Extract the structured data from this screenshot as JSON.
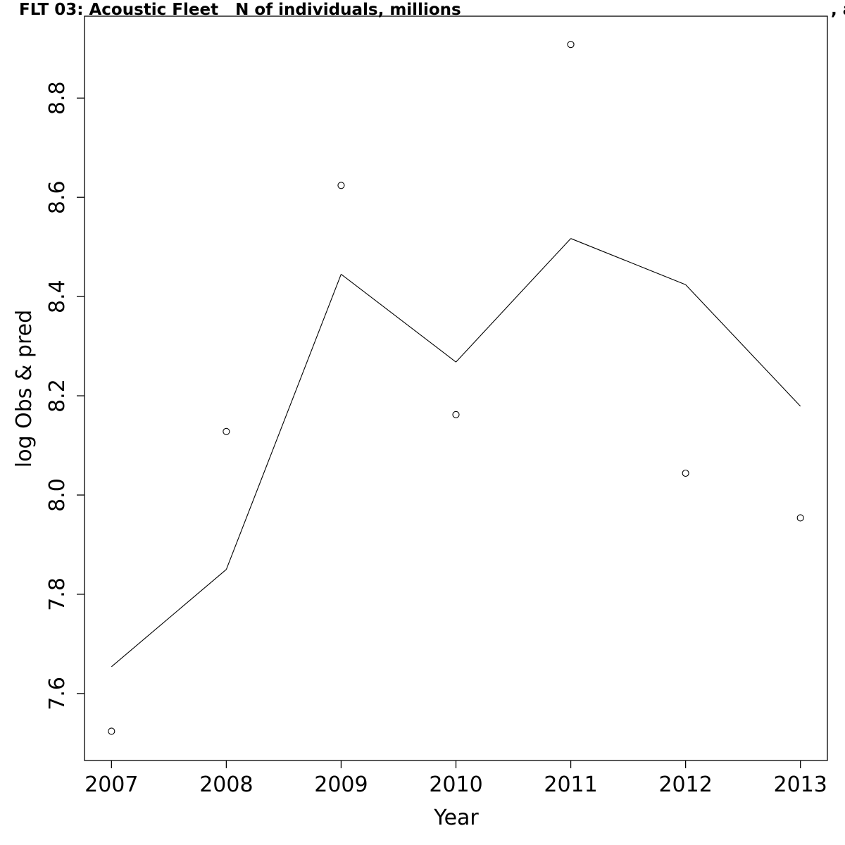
{
  "chart_data": {
    "type": "line",
    "title": "FLT 03: Acoustic Fleet   N of individuals, millions",
    "title_suffix": ", a",
    "xlabel": "Year",
    "ylabel": "log Obs & pred",
    "x": [
      2007,
      2008,
      2009,
      2010,
      2011,
      2012,
      2013
    ],
    "xlim": [
      2006.765,
      2013.235
    ],
    "ylim": [
      7.465,
      8.965
    ],
    "x_ticks": [
      2007,
      2008,
      2009,
      2010,
      2011,
      2012,
      2013
    ],
    "y_ticks": [
      7.6,
      7.8,
      8.0,
      8.2,
      8.4,
      8.6,
      8.8
    ],
    "y_tick_labels": [
      "7.6",
      "7.8",
      "8.0",
      "8.2",
      "8.4",
      "8.6",
      "8.8"
    ],
    "grid": false,
    "series": [
      {
        "style": "points",
        "marker": "open-circle",
        "values": [
          7.524,
          8.128,
          8.624,
          8.162,
          8.908,
          8.044,
          7.954
        ]
      },
      {
        "style": "line",
        "values": [
          7.654,
          7.85,
          8.445,
          8.268,
          8.517,
          8.424,
          8.179
        ]
      }
    ]
  }
}
